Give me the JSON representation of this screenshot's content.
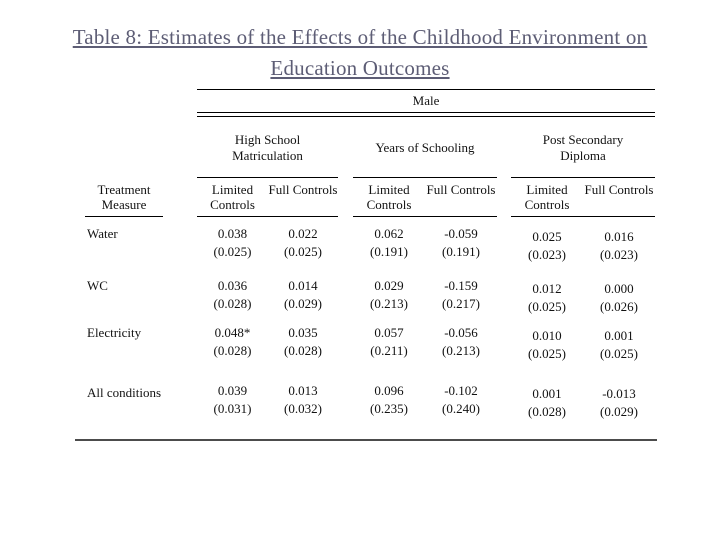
{
  "slide": {
    "title_line1": "Table 8: Estimates of the Effects of the Childhood Environment on",
    "title_line2": "Education Outcomes",
    "title_color": "#5d5d75",
    "rule_color": "#000000"
  },
  "table": {
    "span_header": "Male",
    "row_header": "Treatment Measure",
    "groups": [
      {
        "label": "High School Matriculation"
      },
      {
        "label": "Years of Schooling"
      },
      {
        "label": "Post Secondary Diploma"
      }
    ],
    "subheaders": [
      "Limited Controls",
      "Full Controls",
      "Limited Controls",
      "Full Controls",
      "Limited Controls",
      "Full Controls"
    ],
    "rows": [
      {
        "label": "Water",
        "cells": [
          {
            "coef": "0.038",
            "se": "(0.025)"
          },
          {
            "coef": "0.022",
            "se": "(0.025)"
          },
          {
            "coef": "0.062",
            "se": "(0.191)"
          },
          {
            "coef": "-0.059",
            "se": "(0.191)"
          },
          {
            "coef": "0.025",
            "se": "(0.023)"
          },
          {
            "coef": "0.016",
            "se": "(0.023)"
          }
        ]
      },
      {
        "label": "WC",
        "cells": [
          {
            "coef": "0.036",
            "se": "(0.028)"
          },
          {
            "coef": "0.014",
            "se": "(0.029)"
          },
          {
            "coef": "0.029",
            "se": "(0.213)"
          },
          {
            "coef": "-0.159",
            "se": "(0.217)"
          },
          {
            "coef": "0.012",
            "se": "(0.025)"
          },
          {
            "coef": "0.000",
            "se": "(0.026)"
          }
        ]
      },
      {
        "label": "Electricity",
        "cells": [
          {
            "coef": "0.048*",
            "se": "(0.028)"
          },
          {
            "coef": "0.035",
            "se": "(0.028)"
          },
          {
            "coef": "0.057",
            "se": "(0.211)"
          },
          {
            "coef": "-0.056",
            "se": "(0.213)"
          },
          {
            "coef": "0.010",
            "se": "(0.025)"
          },
          {
            "coef": "0.001",
            "se": "(0.025)"
          }
        ]
      },
      {
        "label": "All conditions",
        "cells": [
          {
            "coef": "0.039",
            "se": "(0.031)"
          },
          {
            "coef": "0.013",
            "se": "(0.032)"
          },
          {
            "coef": "0.096",
            "se": "(0.235)"
          },
          {
            "coef": "-0.102",
            "se": "(0.240)"
          },
          {
            "coef": "0.001",
            "se": "(0.028)"
          },
          {
            "coef": "-0.013",
            "se": "(0.029)"
          }
        ]
      }
    ]
  }
}
